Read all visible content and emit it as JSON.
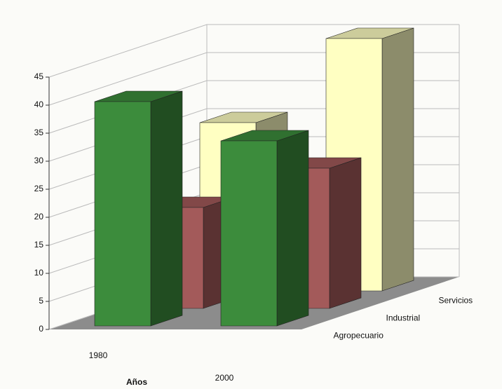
{
  "chart_data": {
    "type": "bar3d",
    "x_label": "Años",
    "categories": [
      "1980",
      "2000"
    ],
    "series": [
      {
        "name": "Agropecuario",
        "color": "#3c8c3c",
        "values": [
          40,
          33
        ]
      },
      {
        "name": "Industrial",
        "color": "#a35a5a",
        "values": [
          18,
          25
        ]
      },
      {
        "name": "Servicios",
        "color": "#ffffc2",
        "values": [
          30,
          45
        ]
      }
    ],
    "ylim": [
      0,
      45
    ],
    "yticks": [
      0,
      5,
      10,
      15,
      20,
      25,
      30,
      35,
      40,
      45
    ],
    "grid": true
  }
}
